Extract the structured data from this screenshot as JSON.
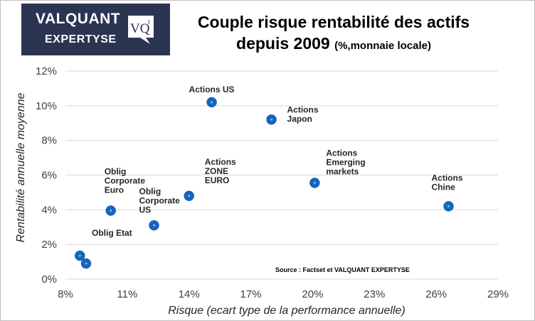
{
  "logo": {
    "line1": "VALQUANT",
    "line2": "EXPERTYSE",
    "badge_main": "VQ",
    "badge_sup": "t"
  },
  "chart_data": {
    "type": "scatter",
    "title_line1": "Couple risque rentabilité des actifs",
    "title_line2": "depuis  2009",
    "title_unit": "(%,monnaie locale)",
    "xlabel": "Risque (ecart type de la performance annuelle)",
    "ylabel": "Rentabilité annuelle moyenne",
    "xlim": [
      8,
      29
    ],
    "ylim": [
      0,
      12
    ],
    "xticks": [
      8,
      11,
      14,
      17,
      20,
      23,
      26,
      29
    ],
    "yticks": [
      0,
      2,
      4,
      6,
      8,
      10,
      12
    ],
    "tick_suffix": "%",
    "grid": "horizontal",
    "marker_color": "#1565c0",
    "source": "Source :  Factset et VALQUANT  EXPERTYSE",
    "points": [
      {
        "x": 15.1,
        "y": 10.2,
        "label": [
          "Actions US"
        ]
      },
      {
        "x": 18.0,
        "y": 9.2,
        "label": [
          "Actions",
          "Japon"
        ]
      },
      {
        "x": 14.0,
        "y": 4.8,
        "label": [
          "Actions",
          "ZONE",
          "EURO"
        ]
      },
      {
        "x": 20.1,
        "y": 5.55,
        "label": [
          "Actions",
          "Emerging",
          "markets"
        ]
      },
      {
        "x": 26.6,
        "y": 4.2,
        "label": [
          "Actions",
          "Chine"
        ]
      },
      {
        "x": 10.2,
        "y": 3.95,
        "label": [
          "Oblig",
          "Corporate",
          "Euro"
        ]
      },
      {
        "x": 12.3,
        "y": 3.1,
        "label": [
          "Oblig",
          "Corporate",
          "US"
        ]
      },
      {
        "x": 8.7,
        "y": 1.35,
        "label": []
      },
      {
        "x": 9.0,
        "y": 0.9,
        "label": []
      }
    ],
    "extra_labels": [
      "Oblig Etat"
    ]
  }
}
